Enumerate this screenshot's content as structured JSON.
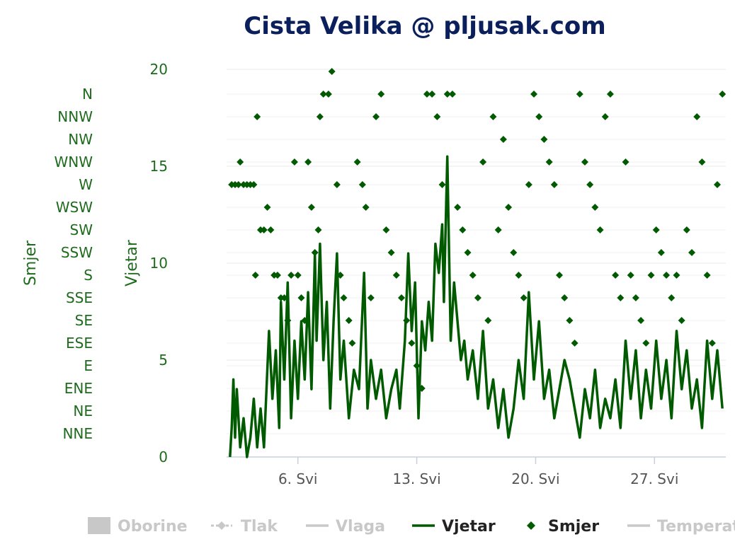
{
  "chart_data": {
    "type": "line",
    "title": "Cista Velika @ pljusak.com",
    "colors": {
      "series": "#005a00",
      "title": "#0b1f5c",
      "axis_text": "#1e6b1e",
      "legend_off": "#c8c8c8"
    },
    "y_left": {
      "label": "Smjer",
      "categories": [
        "NNE",
        "NE",
        "ENE",
        "E",
        "ESE",
        "SE",
        "SSE",
        "S",
        "SSW",
        "SW",
        "WSW",
        "W",
        "WNW",
        "NW",
        "NNW",
        "N"
      ]
    },
    "y_right": {
      "label": "Vjetar",
      "ylim": [
        0,
        20
      ],
      "ticks": [
        "0",
        "5",
        "10",
        "15",
        "20"
      ]
    },
    "x": {
      "range_days": [
        1.8,
        31.2
      ],
      "ticks": [
        {
          "day": 6,
          "label": "6. Svi"
        },
        {
          "day": 13,
          "label": "13. Svi"
        },
        {
          "day": 20,
          "label": "20. Svi"
        },
        {
          "day": 27,
          "label": "27. Svi"
        }
      ]
    },
    "series": [
      {
        "name": "Vjetar",
        "type": "line",
        "points": [
          [
            2.0,
            0.0
          ],
          [
            2.1,
            1.5
          ],
          [
            2.2,
            4.0
          ],
          [
            2.3,
            1.0
          ],
          [
            2.4,
            3.5
          ],
          [
            2.6,
            0.5
          ],
          [
            2.8,
            2.0
          ],
          [
            3.0,
            0.0
          ],
          [
            3.2,
            1.0
          ],
          [
            3.4,
            3.0
          ],
          [
            3.6,
            0.5
          ],
          [
            3.8,
            2.5
          ],
          [
            4.0,
            0.5
          ],
          [
            4.3,
            6.5
          ],
          [
            4.5,
            3.0
          ],
          [
            4.7,
            5.5
          ],
          [
            4.9,
            1.5
          ],
          [
            5.0,
            8.0
          ],
          [
            5.2,
            4.0
          ],
          [
            5.4,
            9.0
          ],
          [
            5.6,
            2.0
          ],
          [
            5.8,
            6.0
          ],
          [
            6.0,
            3.0
          ],
          [
            6.2,
            7.0
          ],
          [
            6.4,
            4.0
          ],
          [
            6.6,
            8.5
          ],
          [
            6.8,
            3.5
          ],
          [
            7.0,
            10.5
          ],
          [
            7.1,
            6.0
          ],
          [
            7.3,
            11.0
          ],
          [
            7.5,
            5.0
          ],
          [
            7.7,
            8.0
          ],
          [
            7.9,
            2.5
          ],
          [
            8.1,
            7.0
          ],
          [
            8.3,
            10.5
          ],
          [
            8.5,
            4.0
          ],
          [
            8.7,
            6.0
          ],
          [
            9.0,
            2.0
          ],
          [
            9.3,
            4.5
          ],
          [
            9.6,
            3.5
          ],
          [
            9.9,
            9.5
          ],
          [
            10.1,
            2.5
          ],
          [
            10.3,
            5.0
          ],
          [
            10.6,
            3.0
          ],
          [
            10.9,
            4.5
          ],
          [
            11.2,
            2.0
          ],
          [
            11.5,
            3.5
          ],
          [
            11.8,
            4.5
          ],
          [
            12.0,
            2.5
          ],
          [
            12.3,
            6.0
          ],
          [
            12.5,
            10.5
          ],
          [
            12.7,
            6.5
          ],
          [
            12.9,
            9.0
          ],
          [
            13.1,
            2.0
          ],
          [
            13.3,
            7.0
          ],
          [
            13.5,
            5.5
          ],
          [
            13.7,
            8.0
          ],
          [
            13.9,
            6.0
          ],
          [
            14.1,
            11.0
          ],
          [
            14.3,
            9.5
          ],
          [
            14.5,
            12.0
          ],
          [
            14.6,
            8.0
          ],
          [
            14.8,
            15.5
          ],
          [
            15.0,
            6.0
          ],
          [
            15.2,
            9.0
          ],
          [
            15.4,
            7.0
          ],
          [
            15.6,
            5.0
          ],
          [
            15.8,
            6.0
          ],
          [
            16.0,
            4.0
          ],
          [
            16.3,
            5.5
          ],
          [
            16.6,
            3.0
          ],
          [
            16.9,
            6.5
          ],
          [
            17.2,
            2.5
          ],
          [
            17.5,
            4.0
          ],
          [
            17.8,
            1.5
          ],
          [
            18.1,
            3.5
          ],
          [
            18.4,
            1.0
          ],
          [
            18.7,
            2.5
          ],
          [
            19.0,
            5.0
          ],
          [
            19.3,
            3.0
          ],
          [
            19.6,
            8.5
          ],
          [
            19.9,
            4.0
          ],
          [
            20.2,
            7.0
          ],
          [
            20.5,
            3.0
          ],
          [
            20.8,
            4.5
          ],
          [
            21.1,
            2.0
          ],
          [
            21.4,
            3.5
          ],
          [
            21.7,
            5.0
          ],
          [
            22.0,
            4.0
          ],
          [
            22.3,
            2.5
          ],
          [
            22.6,
            1.0
          ],
          [
            22.9,
            3.5
          ],
          [
            23.2,
            2.0
          ],
          [
            23.5,
            4.5
          ],
          [
            23.8,
            1.5
          ],
          [
            24.1,
            3.0
          ],
          [
            24.4,
            2.0
          ],
          [
            24.7,
            4.0
          ],
          [
            25.0,
            1.5
          ],
          [
            25.3,
            6.0
          ],
          [
            25.6,
            3.0
          ],
          [
            25.9,
            5.5
          ],
          [
            26.2,
            2.0
          ],
          [
            26.5,
            4.5
          ],
          [
            26.8,
            2.5
          ],
          [
            27.1,
            6.0
          ],
          [
            27.4,
            3.0
          ],
          [
            27.7,
            5.0
          ],
          [
            28.0,
            2.0
          ],
          [
            28.3,
            6.5
          ],
          [
            28.6,
            3.5
          ],
          [
            28.9,
            5.5
          ],
          [
            29.2,
            2.5
          ],
          [
            29.5,
            4.0
          ],
          [
            29.8,
            1.5
          ],
          [
            30.1,
            6.0
          ],
          [
            30.4,
            3.0
          ],
          [
            30.7,
            5.5
          ],
          [
            31.0,
            2.5
          ]
        ]
      },
      {
        "name": "Smjer",
        "type": "scatter",
        "points": [
          [
            2.1,
            11
          ],
          [
            2.3,
            11
          ],
          [
            2.5,
            11
          ],
          [
            2.6,
            12
          ],
          [
            2.8,
            11
          ],
          [
            3.0,
            11
          ],
          [
            3.2,
            11
          ],
          [
            3.4,
            11
          ],
          [
            3.5,
            7
          ],
          [
            3.6,
            14
          ],
          [
            3.8,
            9
          ],
          [
            4.0,
            9
          ],
          [
            4.2,
            10
          ],
          [
            4.4,
            9
          ],
          [
            4.6,
            7
          ],
          [
            4.8,
            7
          ],
          [
            5.0,
            6
          ],
          [
            5.2,
            6
          ],
          [
            5.4,
            5
          ],
          [
            5.6,
            7
          ],
          [
            5.8,
            12
          ],
          [
            6.0,
            7
          ],
          [
            6.2,
            6
          ],
          [
            6.4,
            5
          ],
          [
            6.6,
            12
          ],
          [
            6.8,
            10
          ],
          [
            7.0,
            8
          ],
          [
            7.2,
            9
          ],
          [
            7.3,
            14
          ],
          [
            7.5,
            15
          ],
          [
            7.8,
            15
          ],
          [
            8.0,
            16
          ],
          [
            8.3,
            11
          ],
          [
            8.5,
            7
          ],
          [
            8.7,
            6
          ],
          [
            9.0,
            5
          ],
          [
            9.2,
            4
          ],
          [
            9.5,
            12
          ],
          [
            9.8,
            11
          ],
          [
            10.0,
            10
          ],
          [
            10.3,
            6
          ],
          [
            10.6,
            14
          ],
          [
            10.9,
            15
          ],
          [
            11.2,
            9
          ],
          [
            11.5,
            8
          ],
          [
            11.8,
            7
          ],
          [
            12.1,
            6
          ],
          [
            12.4,
            5
          ],
          [
            12.7,
            4
          ],
          [
            13.0,
            3
          ],
          [
            13.3,
            2
          ],
          [
            13.6,
            15
          ],
          [
            13.9,
            15
          ],
          [
            14.2,
            14
          ],
          [
            14.5,
            11
          ],
          [
            14.8,
            15
          ],
          [
            15.1,
            15
          ],
          [
            15.4,
            10
          ],
          [
            15.7,
            9
          ],
          [
            16.0,
            8
          ],
          [
            16.3,
            7
          ],
          [
            16.6,
            6
          ],
          [
            16.9,
            12
          ],
          [
            17.2,
            5
          ],
          [
            17.5,
            14
          ],
          [
            17.8,
            9
          ],
          [
            18.1,
            13
          ],
          [
            18.4,
            10
          ],
          [
            18.7,
            8
          ],
          [
            19.0,
            7
          ],
          [
            19.3,
            6
          ],
          [
            19.6,
            11
          ],
          [
            19.9,
            15
          ],
          [
            20.2,
            14
          ],
          [
            20.5,
            13
          ],
          [
            20.8,
            12
          ],
          [
            21.1,
            11
          ],
          [
            21.4,
            7
          ],
          [
            21.7,
            6
          ],
          [
            22.0,
            5
          ],
          [
            22.3,
            4
          ],
          [
            22.6,
            15
          ],
          [
            22.9,
            12
          ],
          [
            23.2,
            11
          ],
          [
            23.5,
            10
          ],
          [
            23.8,
            9
          ],
          [
            24.1,
            14
          ],
          [
            24.4,
            15
          ],
          [
            24.7,
            7
          ],
          [
            25.0,
            6
          ],
          [
            25.3,
            12
          ],
          [
            25.6,
            7
          ],
          [
            25.9,
            6
          ],
          [
            26.2,
            5
          ],
          [
            26.5,
            4
          ],
          [
            26.8,
            7
          ],
          [
            27.1,
            9
          ],
          [
            27.4,
            8
          ],
          [
            27.7,
            7
          ],
          [
            28.0,
            6
          ],
          [
            28.3,
            7
          ],
          [
            28.6,
            5
          ],
          [
            28.9,
            9
          ],
          [
            29.2,
            8
          ],
          [
            29.5,
            14
          ],
          [
            29.8,
            12
          ],
          [
            30.1,
            7
          ],
          [
            30.4,
            4
          ],
          [
            30.7,
            11
          ],
          [
            31.0,
            15
          ]
        ]
      }
    ],
    "legend": [
      {
        "name": "Oborine",
        "active": false,
        "symbol": "box"
      },
      {
        "name": "Tlak",
        "active": false,
        "symbol": "dash-diamond"
      },
      {
        "name": "Vlaga",
        "active": false,
        "symbol": "line"
      },
      {
        "name": "Vjetar",
        "active": true,
        "symbol": "line"
      },
      {
        "name": "Smjer",
        "active": true,
        "symbol": "diamond"
      },
      {
        "name": "Temperat",
        "active": false,
        "symbol": "line"
      }
    ],
    "legend_placement": "bottom",
    "grid": true
  }
}
